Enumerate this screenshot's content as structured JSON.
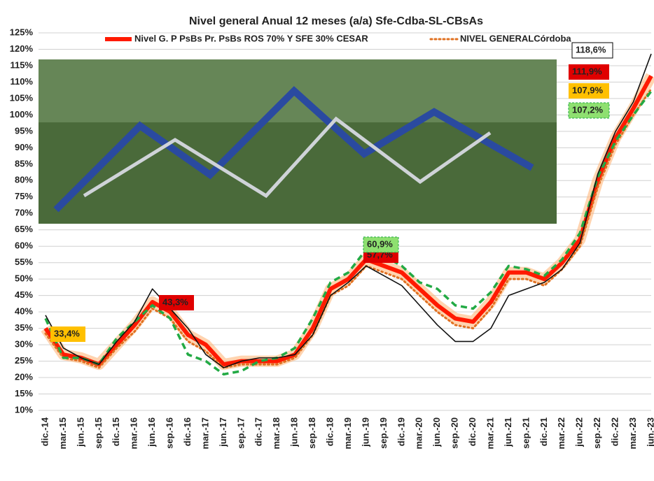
{
  "chart_data": {
    "type": "line",
    "title": "Nivel general  Anual 12 meses (a/a) Sfe-Cdba-SL-CBsAs",
    "categories": [
      "dic.-14",
      "mar.-15",
      "jun.-15",
      "sep.-15",
      "dic.-15",
      "mar.-16",
      "jun.-16",
      "sep.-16",
      "dic.-16",
      "mar.-17",
      "jun.-17",
      "sep.-17",
      "dic.-17",
      "mar.-18",
      "jun.-18",
      "sep.-18",
      "dic.-18",
      "mar.-19",
      "jun.-19",
      "sep.-19",
      "dic.-19",
      "mar.-20",
      "jun.-20",
      "sep.-20",
      "dic.-20",
      "mar.-21",
      "jun.-21",
      "sep.-21",
      "dic.-21",
      "mar.-22",
      "jun.-22",
      "sep.-22",
      "dic.-22",
      "mar.-23",
      "jun.-23"
    ],
    "series": [
      {
        "name": "Nivel G. P PsBs Pr. PsBs ROS 70% Y SFE 30% CESAR",
        "color": "#ff1a00",
        "style": "solid",
        "values": [
          35,
          27,
          26,
          24,
          30,
          36,
          43,
          40,
          33,
          30,
          24,
          25,
          25,
          25,
          27,
          35,
          47,
          50,
          56,
          54,
          52,
          47,
          42,
          38,
          37,
          43,
          52,
          52,
          50,
          55,
          62,
          80,
          93,
          102,
          111.9
        ]
      },
      {
        "name": "NIVEL GENERALCórdoba",
        "color": "#e07020",
        "style": "dotted",
        "values": [
          33.4,
          26,
          25,
          23,
          29,
          34,
          41,
          38,
          31,
          28,
          23,
          24,
          24,
          24,
          26,
          33,
          45,
          48,
          54,
          52,
          50,
          45,
          40,
          36,
          35,
          41,
          50,
          50,
          48,
          53,
          60,
          78,
          91,
          100,
          107.9
        ]
      },
      {
        "color": "#111111",
        "style": "thin",
        "values": [
          39,
          29,
          26,
          24,
          31,
          37,
          47,
          41,
          35,
          27,
          23,
          25,
          26,
          26,
          27,
          33,
          45,
          49,
          54,
          51,
          48,
          42,
          36,
          31,
          31,
          35,
          45,
          47,
          49,
          53,
          61,
          82,
          95,
          104,
          118.6
        ]
      },
      {
        "color": "#22aa44",
        "style": "dashed",
        "values": [
          38,
          26,
          26,
          24,
          32,
          37,
          42,
          38,
          27,
          25,
          21,
          22,
          25,
          26,
          29,
          38,
          49,
          52,
          59,
          57,
          54,
          49,
          47,
          42,
          41,
          46,
          54,
          53,
          51,
          56,
          64,
          81,
          92,
          100,
          107.2
        ]
      }
    ],
    "annotations": [
      "33,4%",
      "43,3%",
      "57,7%",
      "60,9%",
      "118,6%",
      "111,9%",
      "107,9%",
      "107,2%"
    ],
    "ylim": [
      10,
      125
    ],
    "yticks": [
      {
        "value": 10,
        "label": "10%"
      },
      {
        "value": 15,
        "label": "15%"
      },
      {
        "value": 20,
        "label": "20%"
      },
      {
        "value": 25,
        "label": "25%"
      },
      {
        "value": 30,
        "label": "30%"
      },
      {
        "value": 35,
        "label": "35%"
      },
      {
        "value": 40,
        "label": "40%"
      },
      {
        "value": 45,
        "label": "45%"
      },
      {
        "value": 50,
        "label": "50%"
      },
      {
        "value": 55,
        "label": "55%"
      },
      {
        "value": 60,
        "label": "60%"
      },
      {
        "value": 65,
        "label": "65%"
      },
      {
        "value": 70,
        "label": "70%"
      },
      {
        "value": 75,
        "label": "75%"
      },
      {
        "value": 80,
        "label": "80%"
      },
      {
        "value": 85,
        "label": "85%"
      },
      {
        "value": 90,
        "label": "90%"
      },
      {
        "value": 95,
        "label": "95%"
      },
      {
        "value": 100,
        "label": "100%"
      },
      {
        "value": 105,
        "label": "105%"
      },
      {
        "value": 110,
        "label": "110%"
      },
      {
        "value": 115,
        "label": "115%"
      },
      {
        "value": 120,
        "label": "120%"
      },
      {
        "value": 125,
        "label": "125%"
      }
    ],
    "grid": true
  }
}
